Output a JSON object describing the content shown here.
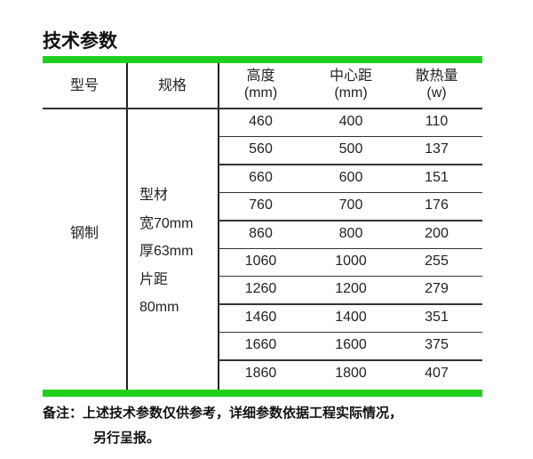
{
  "title": "技术参数",
  "headers": {
    "model": "型号",
    "spec": "规格",
    "height": "高度",
    "height_unit": "(mm)",
    "center": "中心距",
    "center_unit": "(mm)",
    "heat": "散热量",
    "heat_unit": "(w)"
  },
  "model": "钢制",
  "spec": [
    "型材",
    "宽70mm",
    "厚63mm",
    "片距",
    "80mm"
  ],
  "rows": [
    [
      "460",
      "400",
      "110"
    ],
    [
      "560",
      "500",
      "137"
    ],
    [
      "660",
      "600",
      "151"
    ],
    [
      "760",
      "700",
      "176"
    ],
    [
      "860",
      "800",
      "200"
    ],
    [
      "1060",
      "1000",
      "255"
    ],
    [
      "1260",
      "1200",
      "279"
    ],
    [
      "1460",
      "1400",
      "351"
    ],
    [
      "1660",
      "1600",
      "375"
    ],
    [
      "1860",
      "1800",
      "407"
    ]
  ],
  "note": {
    "line1": "备注：上述技术参数仅供参考，详细参数依据工程实际情况，",
    "line2": "另行呈报。"
  },
  "colors": {
    "accent": "#1ed11e"
  }
}
